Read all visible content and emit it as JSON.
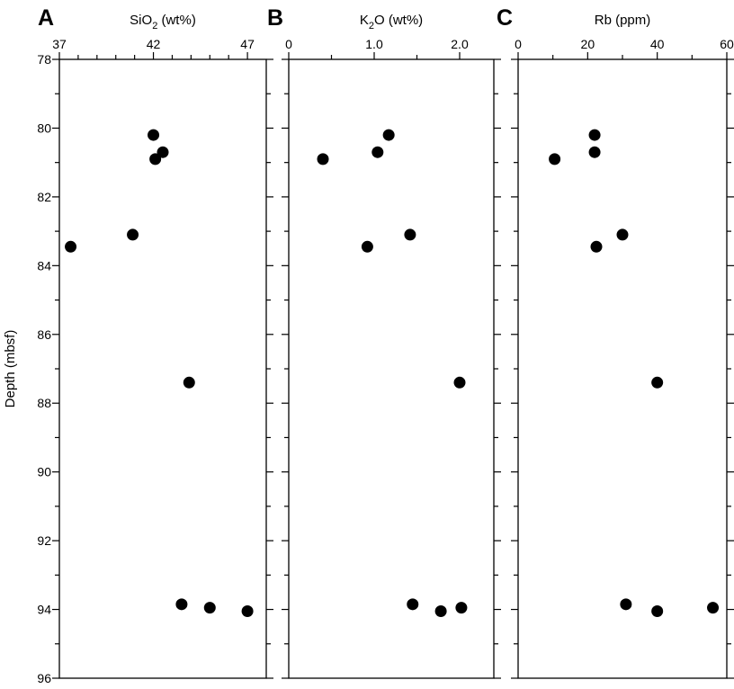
{
  "y_axis": {
    "label": "Depth (mbsf)",
    "range": [
      78,
      96
    ],
    "major_ticks": [
      78,
      80,
      82,
      84,
      86,
      88,
      90,
      92,
      94,
      96
    ],
    "minor_step": 1
  },
  "chart_data": [
    {
      "type": "scatter",
      "panel": "A",
      "title_main": "SiO",
      "title_sub": "2",
      "title_suffix": " (wt%)",
      "xlabel": "SiO2 (wt%)",
      "ylabel": "Depth (mbsf)",
      "xlim": [
        37,
        48
      ],
      "ylim": [
        96,
        78
      ],
      "x_ticks": [
        37,
        42,
        47
      ],
      "x_tick_labels": [
        "37",
        "42",
        "47"
      ],
      "x_minor": [
        38,
        39,
        40,
        41,
        43,
        44,
        45,
        46
      ],
      "points": [
        {
          "x": 42.0,
          "y": 80.2
        },
        {
          "x": 42.5,
          "y": 80.7
        },
        {
          "x": 42.1,
          "y": 80.9
        },
        {
          "x": 40.9,
          "y": 83.1
        },
        {
          "x": 37.6,
          "y": 83.45
        },
        {
          "x": 43.9,
          "y": 87.4
        },
        {
          "x": 43.5,
          "y": 93.85
        },
        {
          "x": 45.0,
          "y": 93.95
        },
        {
          "x": 47.0,
          "y": 94.05
        }
      ]
    },
    {
      "type": "scatter",
      "panel": "B",
      "title_main": "K",
      "title_sub": "2",
      "title_suffix": "O (wt%)",
      "xlabel": "K2O (wt%)",
      "ylabel": "Depth (mbsf)",
      "xlim": [
        0,
        2.4
      ],
      "ylim": [
        96,
        78
      ],
      "x_ticks": [
        0,
        1.0,
        2.0
      ],
      "x_tick_labels": [
        "0",
        "1.0",
        "2.0"
      ],
      "x_minor": [
        0.5,
        1.5
      ],
      "points": [
        {
          "x": 1.17,
          "y": 80.2
        },
        {
          "x": 1.04,
          "y": 80.7
        },
        {
          "x": 0.4,
          "y": 80.9
        },
        {
          "x": 1.42,
          "y": 83.1
        },
        {
          "x": 0.92,
          "y": 83.45
        },
        {
          "x": 2.0,
          "y": 87.4
        },
        {
          "x": 1.45,
          "y": 93.85
        },
        {
          "x": 2.02,
          "y": 93.95
        },
        {
          "x": 1.78,
          "y": 94.05
        }
      ]
    },
    {
      "type": "scatter",
      "panel": "C",
      "title_main": "Rb (ppm)",
      "title_sub": "",
      "title_suffix": "",
      "xlabel": "Rb (ppm)",
      "ylabel": "Depth (mbsf)",
      "xlim": [
        0,
        60
      ],
      "ylim": [
        96,
        78
      ],
      "x_ticks": [
        0,
        20,
        40,
        60
      ],
      "x_tick_labels": [
        "0",
        "20",
        "40",
        "60"
      ],
      "x_minor": [
        10,
        30,
        50
      ],
      "points": [
        {
          "x": 22,
          "y": 80.2
        },
        {
          "x": 22,
          "y": 80.7
        },
        {
          "x": 10.5,
          "y": 80.9
        },
        {
          "x": 30,
          "y": 83.1
        },
        {
          "x": 22.5,
          "y": 83.45
        },
        {
          "x": 40,
          "y": 87.4
        },
        {
          "x": 31,
          "y": 93.85
        },
        {
          "x": 56,
          "y": 93.95
        },
        {
          "x": 40,
          "y": 94.05
        }
      ]
    }
  ]
}
